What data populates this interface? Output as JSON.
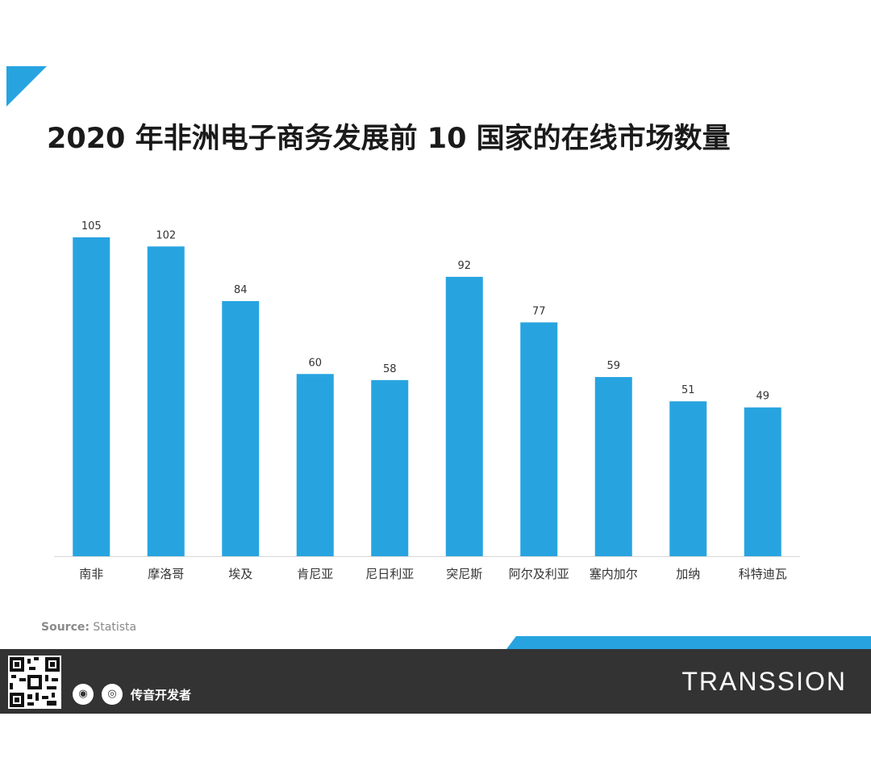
{
  "title": "2020 年非洲电子商务发展前 10 国家的在线市场数量",
  "source_label": "Source:",
  "source_value": "Statista",
  "footer": {
    "social_label": "传音开发者",
    "brand": "TRANSSION",
    "wechat_icon": "wechat-icon",
    "weibo_icon": "weibo-icon"
  },
  "colors": {
    "bar": "#27a4e0",
    "accent": "#27a4e0",
    "footer": "#333333"
  },
  "chart_data": {
    "type": "bar",
    "categories": [
      "南非",
      "摩洛哥",
      "埃及",
      "肯尼亚",
      "尼日利亚",
      "突尼斯",
      "阿尔及利亚",
      "塞内加尔",
      "加纳",
      "科特迪瓦"
    ],
    "values": [
      105,
      102,
      84,
      60,
      58,
      92,
      77,
      59,
      51,
      49
    ],
    "data_labels": [
      "105",
      "102",
      "84",
      "60",
      "58",
      "92",
      "77",
      "59",
      "51",
      "49"
    ],
    "title": "2020 年非洲电子商务发展前 10 国家的在线市场数量",
    "ylim": [
      0,
      105
    ],
    "grid": false,
    "legend": "none"
  }
}
